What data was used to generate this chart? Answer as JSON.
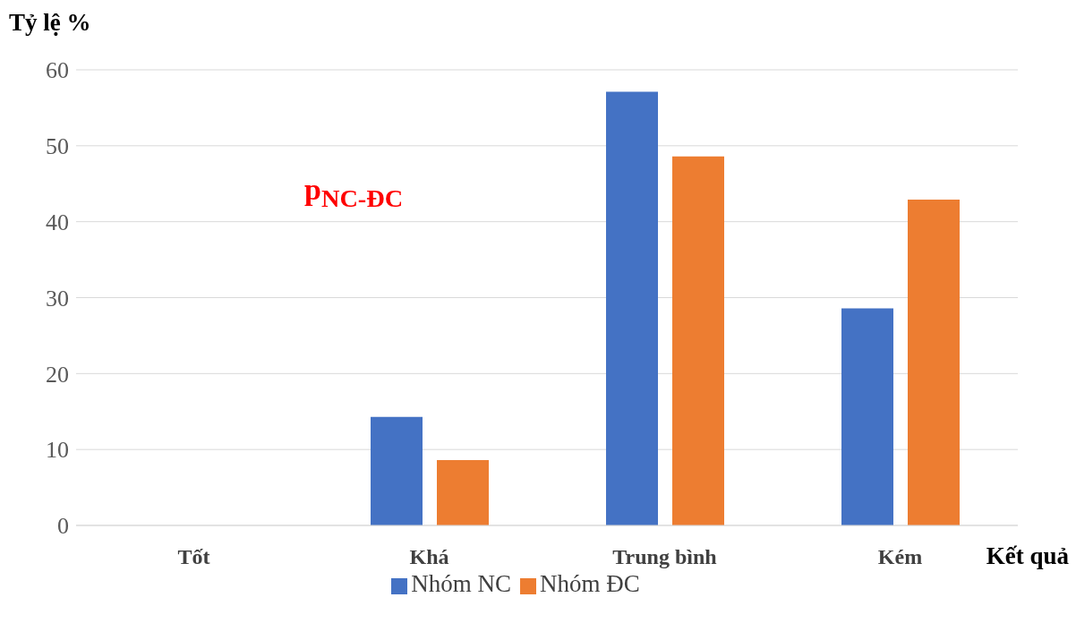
{
  "chart_data": {
    "type": "bar",
    "ylabel": "Tỷ lệ %",
    "xlabel": "Kết quả",
    "categories": [
      "Tốt",
      "Khá",
      "Trung bình",
      "Kém"
    ],
    "series": [
      {
        "name": "Nhóm NC",
        "color": "#4472c4",
        "values": [
          0,
          14.3,
          57.1,
          28.6
        ]
      },
      {
        "name": "Nhóm ĐC",
        "color": "#ed7d31",
        "values": [
          0,
          8.6,
          48.6,
          42.9
        ]
      }
    ],
    "ylim": [
      0,
      60
    ],
    "yticks": [
      0,
      10,
      20,
      30,
      40,
      50,
      60
    ],
    "grid": "y",
    "legend": "bottom",
    "annotations": [
      "p$_{NC-ĐC}$"
    ]
  }
}
